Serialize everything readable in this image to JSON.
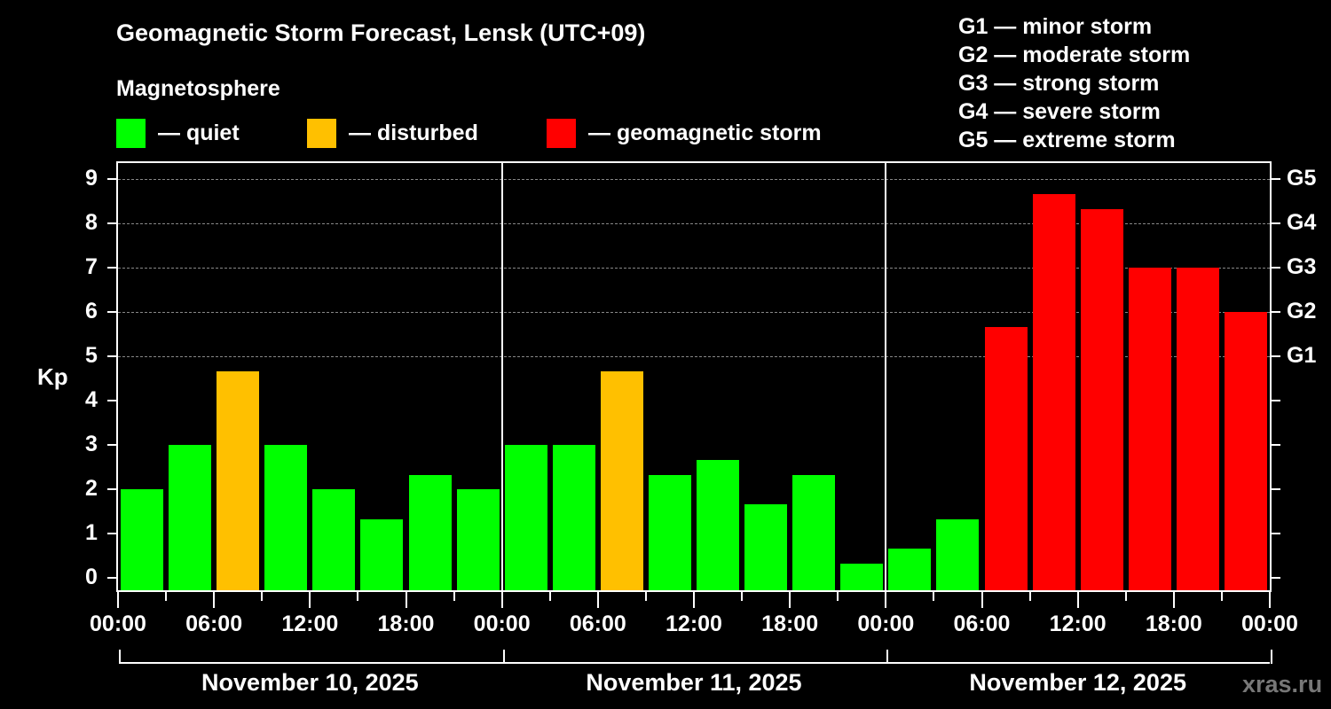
{
  "header": {
    "title": "Geomagnetic Storm Forecast, Lensk (UTC+09)",
    "subtitle": "Magnetosphere"
  },
  "legend": [
    {
      "label": "— quiet",
      "color": "#00ff00"
    },
    {
      "label": "— disturbed",
      "color": "#ffc000"
    },
    {
      "label": "— geomagnetic storm",
      "color": "#ff0000"
    }
  ],
  "g_legend": [
    "G1 — minor storm",
    "G2 — moderate storm",
    "G3 — strong storm",
    "G4 — severe storm",
    "G5 — extreme storm"
  ],
  "axis": {
    "ylabel": "Kp",
    "yticks": [
      "0",
      "1",
      "2",
      "3",
      "4",
      "5",
      "6",
      "7",
      "8",
      "9"
    ],
    "gticks": [
      {
        "label": "G1",
        "kp": 5
      },
      {
        "label": "G2",
        "kp": 6
      },
      {
        "label": "G3",
        "kp": 7
      },
      {
        "label": "G4",
        "kp": 8
      },
      {
        "label": "G5",
        "kp": 9
      }
    ],
    "xticks": [
      "00:00",
      "06:00",
      "12:00",
      "18:00",
      "00:00",
      "06:00",
      "12:00",
      "18:00",
      "00:00",
      "06:00",
      "12:00",
      "18:00",
      "00:00"
    ],
    "dates": [
      "November 10, 2025",
      "November 11, 2025",
      "November 12, 2025"
    ]
  },
  "watermark": "xras.ru",
  "colors": {
    "quiet": "#00ff00",
    "disturbed": "#ffc000",
    "storm": "#ff0000",
    "grid": "#888888"
  },
  "chart_data": {
    "type": "bar",
    "title": "Geomagnetic Storm Forecast, Lensk (UTC+09)",
    "xlabel": "",
    "ylabel": "Kp",
    "ylim": [
      0,
      9
    ],
    "grid": "dashed horizontal at Kp 5-9",
    "categories": [
      "Nov 10 00:00",
      "Nov 10 03:00",
      "Nov 10 06:00",
      "Nov 10 09:00",
      "Nov 10 12:00",
      "Nov 10 15:00",
      "Nov 10 18:00",
      "Nov 10 21:00",
      "Nov 11 00:00",
      "Nov 11 03:00",
      "Nov 11 06:00",
      "Nov 11 09:00",
      "Nov 11 12:00",
      "Nov 11 15:00",
      "Nov 11 18:00",
      "Nov 11 21:00",
      "Nov 12 00:00",
      "Nov 12 03:00",
      "Nov 12 06:00",
      "Nov 12 09:00",
      "Nov 12 12:00",
      "Nov 12 15:00",
      "Nov 12 18:00",
      "Nov 12 21:00"
    ],
    "values": [
      2.0,
      3.0,
      4.67,
      3.0,
      2.0,
      1.33,
      2.33,
      2.0,
      3.0,
      3.0,
      4.67,
      2.33,
      2.67,
      1.67,
      2.33,
      0.33,
      0.67,
      1.33,
      5.67,
      8.67,
      8.33,
      7.0,
      7.0,
      6.0
    ],
    "status": [
      "quiet",
      "quiet",
      "disturbed",
      "quiet",
      "quiet",
      "quiet",
      "quiet",
      "quiet",
      "quiet",
      "quiet",
      "disturbed",
      "quiet",
      "quiet",
      "quiet",
      "quiet",
      "quiet",
      "quiet",
      "quiet",
      "storm",
      "storm",
      "storm",
      "storm",
      "storm",
      "storm"
    ],
    "legend": [
      "quiet",
      "disturbed",
      "geomagnetic storm"
    ],
    "secondary_axis": {
      "G1": 5,
      "G2": 6,
      "G3": 7,
      "G4": 8,
      "G5": 9
    }
  }
}
